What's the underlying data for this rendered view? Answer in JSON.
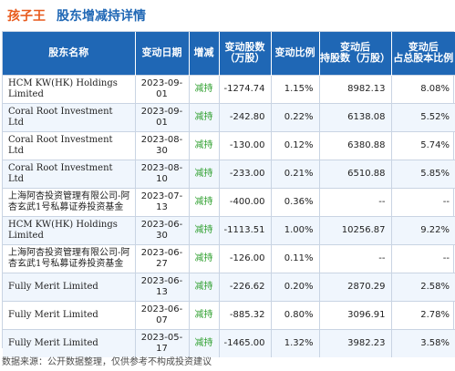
{
  "header": {
    "stock_name": "孩子王",
    "title": "股东增减持详情"
  },
  "table": {
    "columns": [
      "股东名称",
      "变动日期",
      "增减",
      "变动股数\n（万股）",
      "变动比例",
      "变动后\n持股数（万股）",
      "变动后\n占总股本比例"
    ],
    "rows": [
      {
        "name": "HCM KW(HK) Holdings Limited",
        "date": "2023-09-01",
        "type": "减持",
        "change": "-1274.74",
        "ratio": "1.15%",
        "after": "8982.13",
        "after_ratio": "8.08%"
      },
      {
        "name": "Coral Root Investment Ltd",
        "date": "2023-09-01",
        "type": "减持",
        "change": "-242.80",
        "ratio": "0.22%",
        "after": "6138.08",
        "after_ratio": "5.52%"
      },
      {
        "name": "Coral Root Investment Ltd",
        "date": "2023-08-30",
        "type": "减持",
        "change": "-130.00",
        "ratio": "0.12%",
        "after": "6380.88",
        "after_ratio": "5.74%"
      },
      {
        "name": "Coral Root Investment Ltd",
        "date": "2023-08-10",
        "type": "减持",
        "change": "-233.00",
        "ratio": "0.21%",
        "after": "6510.88",
        "after_ratio": "5.85%"
      },
      {
        "name": "上海阿杏投资管理有限公司-阿杏玄武1号私募证券投资基金",
        "date": "2023-07-13",
        "type": "减持",
        "change": "-400.00",
        "ratio": "0.36%",
        "after": "--",
        "after_ratio": "--"
      },
      {
        "name": "HCM KW(HK) Holdings Limited",
        "date": "2023-06-30",
        "type": "减持",
        "change": "-1113.51",
        "ratio": "1.00%",
        "after": "10256.87",
        "after_ratio": "9.22%"
      },
      {
        "name": "上海阿杏投资管理有限公司-阿杏玄武1号私募证券投资基金",
        "date": "2023-06-27",
        "type": "减持",
        "change": "-126.00",
        "ratio": "0.11%",
        "after": "--",
        "after_ratio": "--"
      },
      {
        "name": "Fully Merit Limited",
        "date": "2023-06-13",
        "type": "减持",
        "change": "-226.62",
        "ratio": "0.20%",
        "after": "2870.29",
        "after_ratio": "2.58%"
      },
      {
        "name": "Fully Merit Limited",
        "date": "2023-06-07",
        "type": "减持",
        "change": "-885.32",
        "ratio": "0.80%",
        "after": "3096.91",
        "after_ratio": "2.78%"
      },
      {
        "name": "Fully Merit Limited",
        "date": "2023-05-17",
        "type": "减持",
        "change": "-1465.00",
        "ratio": "1.32%",
        "after": "3982.23",
        "after_ratio": "3.58%"
      }
    ]
  },
  "footer": {
    "text": "数据来源：公开数据整理，仅供参考不构成投资建议"
  },
  "colors": {
    "brand_orange": "#e85b1e",
    "brand_blue": "#1f67b5",
    "decrease_green": "#2e9f2e"
  }
}
